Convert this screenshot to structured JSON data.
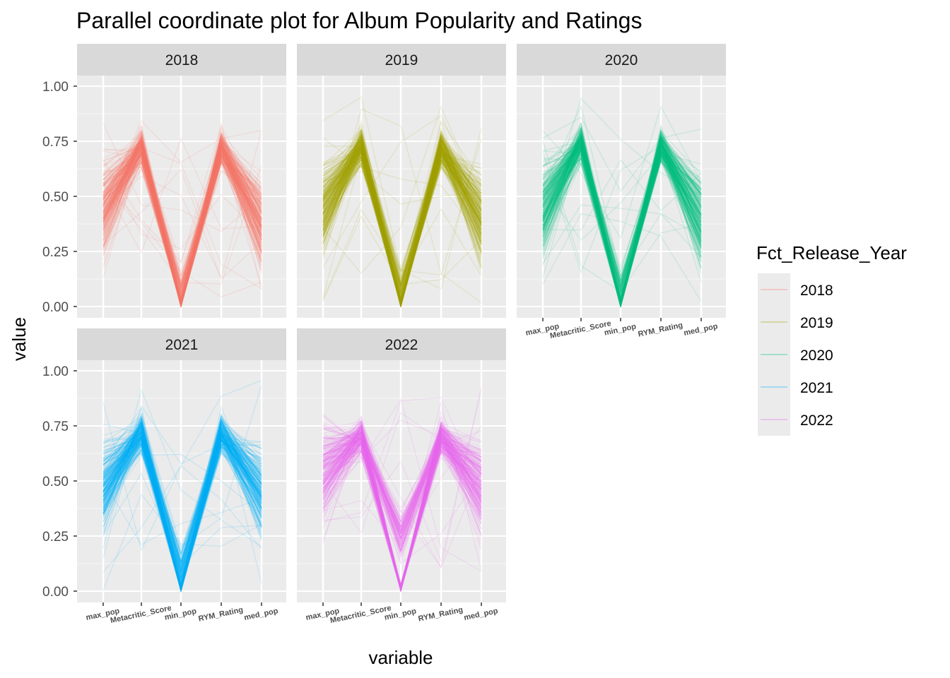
{
  "chart_data": {
    "type": "parallel-coordinates",
    "title": "Parallel coordinate plot for Album Popularity and Ratings",
    "xlabel": "variable",
    "ylabel": "value",
    "ylim": [
      0,
      1
    ],
    "y_ticks": [
      "0.00",
      "0.25",
      "0.50",
      "0.75",
      "1.00"
    ],
    "y_tick_values": [
      0,
      0.25,
      0.5,
      0.75,
      1
    ],
    "variables": [
      "max_pop",
      "Metacritic_Score",
      "min_pop",
      "RYM_Rating",
      "med_pop"
    ],
    "grid": true,
    "legend": {
      "title": "Fct_Release_Year",
      "placement": "right",
      "entries": [
        "2018",
        "2019",
        "2020",
        "2021",
        "2022"
      ]
    },
    "facets": [
      {
        "label": "2018",
        "color": "#F8766D",
        "typical": [
          0.45,
          0.72,
          0.05,
          0.72,
          0.38
        ],
        "ranges": {
          "max_pop": [
            0.02,
            0.88
          ],
          "Metacritic_Score": [
            0.0,
            0.92
          ],
          "min_pop": [
            0.0,
            0.78
          ],
          "RYM_Rating": [
            0.0,
            0.9
          ],
          "med_pop": [
            0.0,
            0.83
          ]
        }
      },
      {
        "label": "2019",
        "color": "#A3A500",
        "typical": [
          0.45,
          0.73,
          0.05,
          0.72,
          0.4
        ],
        "ranges": {
          "max_pop": [
            0.02,
            0.92
          ],
          "Metacritic_Score": [
            0.1,
            0.97
          ],
          "min_pop": [
            0.0,
            0.88
          ],
          "RYM_Rating": [
            0.06,
            0.92
          ],
          "med_pop": [
            0.0,
            0.88
          ]
        }
      },
      {
        "label": "2020",
        "color": "#00BF7D",
        "typical": [
          0.45,
          0.74,
          0.05,
          0.73,
          0.4
        ],
        "ranges": {
          "max_pop": [
            0.0,
            0.88
          ],
          "Metacritic_Score": [
            0.14,
            1.0
          ],
          "min_pop": [
            0.0,
            0.82
          ],
          "RYM_Rating": [
            0.14,
            0.93
          ],
          "med_pop": [
            0.0,
            0.83
          ]
        }
      },
      {
        "label": "2021",
        "color": "#00B0F6",
        "typical": [
          0.48,
          0.72,
          0.08,
          0.72,
          0.45
        ],
        "ranges": {
          "max_pop": [
            0.0,
            0.91
          ],
          "Metacritic_Score": [
            0.18,
            0.94
          ],
          "min_pop": [
            0.0,
            0.92
          ],
          "RYM_Rating": [
            0.14,
            0.93
          ],
          "med_pop": [
            0.02,
            0.98
          ]
        }
      },
      {
        "label": "2022",
        "color": "#E76BF3",
        "typical": [
          0.55,
          0.7,
          0.25,
          0.7,
          0.48
        ],
        "ranges": {
          "max_pop": [
            0.15,
            1.0
          ],
          "Metacritic_Score": [
            0.15,
            0.88
          ],
          "min_pop": [
            0.0,
            1.0
          ],
          "RYM_Rating": [
            0.1,
            0.91
          ],
          "med_pop": [
            0.08,
            0.99
          ]
        }
      }
    ]
  }
}
